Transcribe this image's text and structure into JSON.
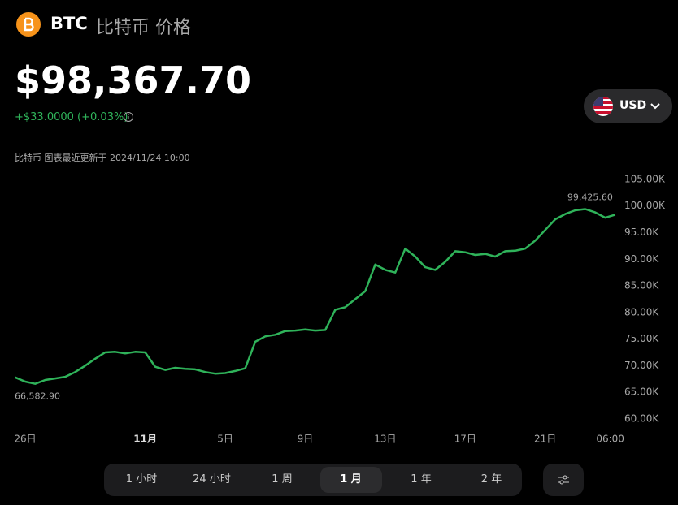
{
  "header": {
    "symbol": "BTC",
    "title": "比特币 价格"
  },
  "price": "$98,367.70",
  "change": "+$33.0000 (+0.03%)",
  "currency": "USD",
  "updated": "比特币 图表最近更新于 2024/11/24 10:00",
  "tabs": [
    "1 小时",
    "24 小时",
    "1 周",
    "1 月",
    "1 年",
    "2 年"
  ],
  "active_tab": 3,
  "chart_data": {
    "type": "line",
    "color": "#2fb35a",
    "grid": false,
    "x": [
      -0.5,
      0,
      0.5,
      1,
      1.5,
      2,
      2.5,
      3,
      3.5,
      4,
      4.5,
      5,
      5.5,
      6,
      6.5,
      7,
      7.5,
      8,
      8.5,
      9,
      9.5,
      10,
      10.5,
      11,
      11.5,
      12,
      12.5,
      13,
      13.5,
      14,
      14.5,
      15,
      15.5,
      16,
      16.5,
      17,
      17.5,
      18,
      18.5,
      19,
      19.5,
      20,
      20.5,
      21,
      21.5,
      22,
      22.5,
      23,
      23.5,
      24,
      24.5,
      25,
      25.5,
      26,
      26.5,
      27,
      27.5,
      28,
      28.5,
      29,
      29.5
    ],
    "values": [
      67800,
      67000,
      66582.9,
      67300,
      67600,
      67900,
      68800,
      70000,
      71300,
      72500,
      72600,
      72300,
      72600,
      72500,
      69800,
      69200,
      69600,
      69400,
      69300,
      68800,
      68500,
      68600,
      69000,
      69500,
      74500,
      75500,
      75800,
      76500,
      76600,
      76800,
      76600,
      76700,
      80500,
      81000,
      82500,
      84000,
      89000,
      88000,
      87500,
      92000,
      90500,
      88500,
      88000,
      89500,
      91500,
      91300,
      90800,
      91000,
      90500,
      91500,
      91600,
      92000,
      93500,
      95500,
      97500,
      98500,
      99200,
      99425.6,
      98800,
      97800,
      98367.7
    ],
    "annotations": [
      {
        "x": 28,
        "y": 99425.6,
        "label": "99,425.60"
      },
      {
        "x": 0.5,
        "y": 66582.9,
        "label": "66,582.90"
      }
    ],
    "xlim": [
      -0.53,
      29.55
    ],
    "xticks": [
      {
        "value": 0,
        "label": "26日"
      },
      {
        "value": 6,
        "label": "11月"
      },
      {
        "value": 10,
        "label": "5日"
      },
      {
        "value": 14,
        "label": "9日"
      },
      {
        "value": 18,
        "label": "13日"
      },
      {
        "value": 22,
        "label": "17日"
      },
      {
        "value": 26,
        "label": "21日"
      },
      {
        "value": 29.25,
        "label": "06:00"
      }
    ],
    "ylim": [
      58000,
      106000
    ],
    "yticks": [
      {
        "value": 60000,
        "label": "60.00K"
      },
      {
        "value": 65000,
        "label": "65.00K"
      },
      {
        "value": 70000,
        "label": "70.00K"
      },
      {
        "value": 75000,
        "label": "75.00K"
      },
      {
        "value": 80000,
        "label": "80.00K"
      },
      {
        "value": 85000,
        "label": "85.00K"
      },
      {
        "value": 90000,
        "label": "90.00K"
      },
      {
        "value": 95000,
        "label": "95.00K"
      },
      {
        "value": 100000,
        "label": "100.00K"
      },
      {
        "value": 105000,
        "label": "105.00K"
      }
    ]
  }
}
